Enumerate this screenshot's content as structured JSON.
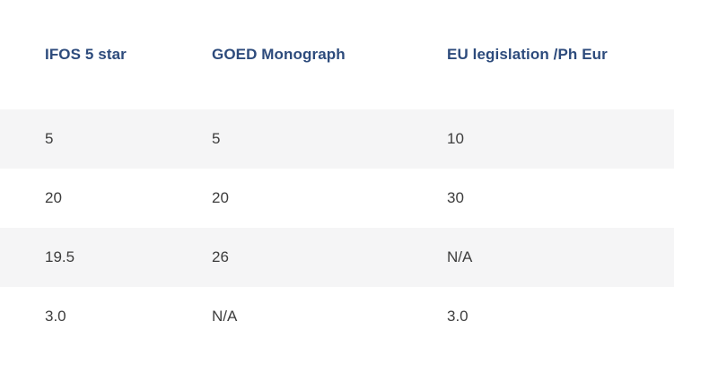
{
  "chart_data": {
    "type": "table",
    "title": "",
    "columns": [
      "IFOS 5 star",
      "GOED Monograph",
      "EU legislation /Ph Eur"
    ],
    "rows": [
      [
        "5",
        "5",
        "10"
      ],
      [
        "20",
        "20",
        "30"
      ],
      [
        "19.5",
        "26",
        "N/A"
      ],
      [
        "3.0",
        "N/A",
        "3.0"
      ]
    ],
    "layout_hints": {
      "striped": true,
      "shaded_rows": [
        1,
        3
      ],
      "grid": false,
      "borders": false
    }
  },
  "colors": {
    "header_text": "#2d4b7c",
    "cell_text": "#3d3d3d",
    "row_shade": "#f5f5f6",
    "background": "#ffffff"
  }
}
